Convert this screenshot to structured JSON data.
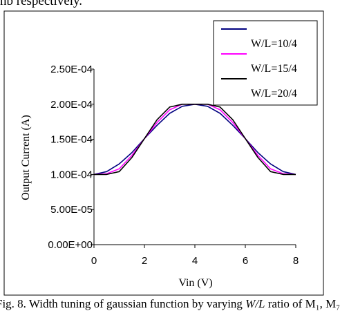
{
  "page": {
    "top_text": "nb respectively.",
    "caption_prefix": "Fig. 8.  Width tuning of gaussian function by varying ",
    "caption_italic": "W/L",
    "caption_suffix": " ratio of M₁, M₇"
  },
  "chart_data": {
    "type": "line",
    "title": "",
    "xlabel": "Vin (V)",
    "ylabel": "Output Current (A)",
    "xlim": [
      0,
      8
    ],
    "ylim": [
      0,
      0.00025
    ],
    "x_ticks": [
      0,
      2,
      4,
      6,
      8
    ],
    "x_tick_labels": [
      "0",
      "2",
      "4",
      "6",
      "8"
    ],
    "y_ticks": [
      0,
      5e-05,
      0.0001,
      0.00015,
      0.0002,
      0.00025
    ],
    "y_tick_labels": [
      "0.00E+00",
      "5.00E-05",
      "1.00E-04",
      "1.50E-04",
      "2.00E-04",
      "2.50E-04"
    ],
    "grid": false,
    "legend_position": "top-right",
    "series": [
      {
        "name": "W/L=10/4",
        "color": "#000080",
        "x": [
          0,
          0.5,
          1,
          1.5,
          2,
          2.5,
          3,
          3.5,
          4,
          4.5,
          5,
          5.5,
          6,
          6.5,
          7,
          7.5,
          8
        ],
        "y": [
          0.0001,
          0.000104,
          0.000115,
          0.000131,
          0.000151,
          0.00017,
          0.000187,
          0.000197,
          0.0002,
          0.000197,
          0.000187,
          0.00017,
          0.000151,
          0.000131,
          0.000115,
          0.000104,
          0.0001
        ]
      },
      {
        "name": "W/L=15/4",
        "color": "#ff00ff",
        "x": [
          0,
          0.5,
          1,
          1.5,
          2,
          2.5,
          3,
          3.5,
          4,
          4.5,
          5,
          5.5,
          6,
          6.5,
          7,
          7.5,
          8
        ],
        "y": [
          0.0001,
          0.000101,
          0.000108,
          0.000127,
          0.000151,
          0.000174,
          0.000192,
          0.0002,
          0.0002,
          0.0002,
          0.000192,
          0.000174,
          0.000151,
          0.000127,
          0.000108,
          0.000101,
          0.0001
        ]
      },
      {
        "name": "W/L=20/4",
        "color": "#000000",
        "x": [
          0,
          0.5,
          1,
          1.5,
          2,
          2.5,
          3,
          3.5,
          4,
          4.5,
          5,
          5.5,
          6,
          6.5,
          7,
          7.5,
          8
        ],
        "y": [
          0.0001,
          0.0001,
          0.000104,
          0.000124,
          0.000151,
          0.000178,
          0.000196,
          0.0002,
          0.0002,
          0.0002,
          0.000196,
          0.000178,
          0.000151,
          0.000124,
          0.000104,
          0.0001,
          0.0001
        ]
      }
    ]
  }
}
